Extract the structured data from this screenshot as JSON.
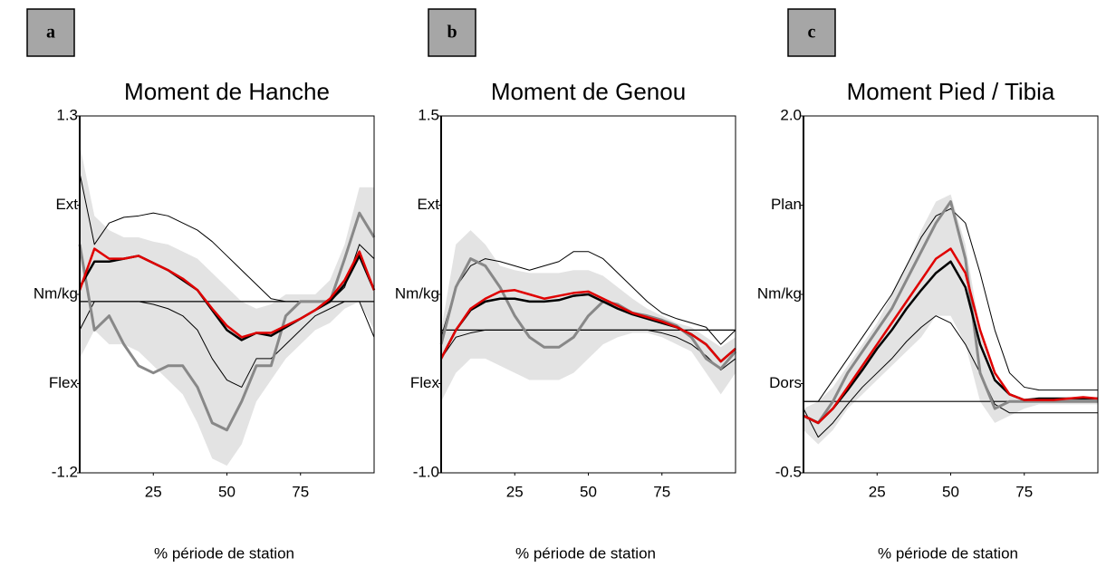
{
  "chart_data": [
    {
      "type": "line",
      "panel_label": "a",
      "title": "Moment de Hanche",
      "xlabel": "% période de station",
      "x": [
        0,
        5,
        10,
        15,
        20,
        25,
        30,
        35,
        40,
        45,
        50,
        55,
        60,
        65,
        70,
        75,
        80,
        85,
        90,
        95,
        100
      ],
      "xlim": [
        0,
        100
      ],
      "xticks": [
        25,
        50,
        75
      ],
      "ylim": [
        -1.2,
        1.3
      ],
      "yticks": [
        -1.2,
        {
          "value": -0.575,
          "label": "Flex"
        },
        {
          "value": 0.05,
          "label": "Nm/kg"
        },
        {
          "value": 0.675,
          "label": "Ext"
        },
        1.3
      ],
      "reference_line": 0,
      "band": {
        "color": "#e3e3e3",
        "upper": [
          1.1,
          0.6,
          0.5,
          0.45,
          0.45,
          0.42,
          0.4,
          0.35,
          0.3,
          0.2,
          0.1,
          0.0,
          -0.05,
          -0.02,
          0.05,
          0.05,
          0.05,
          0.15,
          0.4,
          0.8,
          0.8
        ],
        "lower": [
          -0.4,
          -0.2,
          -0.3,
          -0.3,
          -0.35,
          -0.45,
          -0.55,
          -0.65,
          -0.85,
          -1.1,
          -1.15,
          -1.0,
          -0.7,
          -0.55,
          -0.4,
          -0.3,
          -0.2,
          -0.15,
          -0.05,
          0.0,
          -0.2
        ]
      },
      "series": [
        {
          "color": "#000000",
          "linewidth": 1,
          "values": [
            0.9,
            0.4,
            0.55,
            0.59,
            0.6,
            0.62,
            0.6,
            0.55,
            0.5,
            0.42,
            0.32,
            0.22,
            0.12,
            0.02,
            0.0,
            0.0,
            0.0,
            0.0,
            0.1,
            0.4,
            0.3
          ]
        },
        {
          "color": "#000000",
          "linewidth": 1,
          "values": [
            -0.2,
            0.0,
            0.0,
            0.0,
            0.0,
            -0.02,
            -0.05,
            -0.1,
            -0.2,
            -0.4,
            -0.55,
            -0.6,
            -0.4,
            -0.4,
            -0.3,
            -0.2,
            -0.1,
            -0.05,
            0.0,
            0.0,
            -0.25
          ]
        },
        {
          "color": "#888888",
          "linewidth": 3,
          "values": [
            0.4,
            -0.2,
            -0.1,
            -0.3,
            -0.45,
            -0.5,
            -0.45,
            -0.45,
            -0.6,
            -0.85,
            -0.9,
            -0.7,
            -0.45,
            -0.45,
            -0.1,
            0.0,
            0.0,
            0.0,
            0.3,
            0.62,
            0.45
          ]
        },
        {
          "color": "#000000",
          "linewidth": 2.5,
          "values": [
            0.1,
            0.28,
            0.28,
            0.3,
            0.32,
            0.27,
            0.22,
            0.15,
            0.08,
            -0.06,
            -0.2,
            -0.27,
            -0.22,
            -0.24,
            -0.18,
            -0.12,
            -0.06,
            0.0,
            0.12,
            0.32,
            0.08
          ]
        },
        {
          "color": "#e00000",
          "linewidth": 2.5,
          "values": [
            0.08,
            0.37,
            0.3,
            0.3,
            0.32,
            0.27,
            0.22,
            0.16,
            0.08,
            -0.05,
            -0.17,
            -0.25,
            -0.22,
            -0.22,
            -0.17,
            -0.12,
            -0.06,
            0.02,
            0.15,
            0.35,
            0.08
          ]
        }
      ]
    },
    {
      "type": "line",
      "panel_label": "b",
      "title": "Moment de Genou",
      "xlabel": "% période de station",
      "x": [
        0,
        5,
        10,
        15,
        20,
        25,
        30,
        35,
        40,
        45,
        50,
        55,
        60,
        65,
        70,
        75,
        80,
        85,
        90,
        95,
        100
      ],
      "xlim": [
        0,
        100
      ],
      "xticks": [
        25,
        50,
        75
      ],
      "ylim": [
        -1.0,
        1.5
      ],
      "yticks": [
        {
          "value": -1.0,
          "label": "-1.0"
        },
        {
          "value": -0.375,
          "label": "Flex"
        },
        {
          "value": 0.25,
          "label": "Nm/kg"
        },
        {
          "value": 0.875,
          "label": "Ext"
        },
        1.5
      ],
      "reference_line": 0,
      "band": {
        "color": "#e3e3e3",
        "upper": [
          0.0,
          0.6,
          0.7,
          0.6,
          0.45,
          0.42,
          0.4,
          0.4,
          0.4,
          0.42,
          0.42,
          0.38,
          0.3,
          0.22,
          0.15,
          0.1,
          0.05,
          0.02,
          -0.05,
          -0.12,
          -0.05
        ],
        "lower": [
          -0.5,
          -0.3,
          -0.2,
          -0.2,
          -0.25,
          -0.3,
          -0.35,
          -0.35,
          -0.35,
          -0.3,
          -0.2,
          -0.1,
          -0.05,
          -0.02,
          -0.02,
          -0.05,
          -0.1,
          -0.15,
          -0.3,
          -0.45,
          -0.3
        ]
      },
      "series": [
        {
          "color": "#000000",
          "linewidth": 1,
          "values": [
            -0.05,
            0.3,
            0.45,
            0.5,
            0.48,
            0.45,
            0.42,
            0.45,
            0.48,
            0.55,
            0.55,
            0.5,
            0.4,
            0.3,
            0.2,
            0.12,
            0.08,
            0.05,
            0.02,
            -0.1,
            0.0
          ]
        },
        {
          "color": "#000000",
          "linewidth": 1,
          "values": [
            -0.2,
            -0.05,
            -0.02,
            0.0,
            0.0,
            0.0,
            0.0,
            0.0,
            0.0,
            0.0,
            0.0,
            0.0,
            0.0,
            0.0,
            0.0,
            -0.02,
            -0.05,
            -0.1,
            -0.18,
            -0.28,
            -0.2
          ]
        },
        {
          "color": "#888888",
          "linewidth": 3,
          "values": [
            -0.1,
            0.3,
            0.5,
            0.45,
            0.3,
            0.1,
            -0.05,
            -0.12,
            -0.12,
            -0.05,
            0.1,
            0.2,
            0.18,
            0.12,
            0.1,
            0.07,
            0.03,
            -0.05,
            -0.2,
            -0.27,
            -0.15
          ]
        },
        {
          "color": "#000000",
          "linewidth": 2.5,
          "values": [
            -0.2,
            0.0,
            0.14,
            0.2,
            0.22,
            0.22,
            0.2,
            0.2,
            0.21,
            0.24,
            0.25,
            0.2,
            0.15,
            0.11,
            0.08,
            0.05,
            0.02,
            -0.03,
            -0.1,
            -0.22,
            -0.13
          ]
        },
        {
          "color": "#e00000",
          "linewidth": 2.5,
          "values": [
            -0.2,
            0.0,
            0.15,
            0.22,
            0.27,
            0.28,
            0.25,
            0.22,
            0.24,
            0.26,
            0.27,
            0.22,
            0.17,
            0.12,
            0.09,
            0.06,
            0.02,
            -0.03,
            -0.1,
            -0.22,
            -0.13
          ]
        }
      ]
    },
    {
      "type": "line",
      "panel_label": "c",
      "title": "Moment Pied / Tibia",
      "xlabel": "% période de station",
      "x": [
        0,
        5,
        10,
        15,
        20,
        25,
        30,
        35,
        40,
        45,
        50,
        55,
        60,
        65,
        70,
        75,
        80,
        85,
        90,
        95,
        100
      ],
      "xlim": [
        0,
        100
      ],
      "xticks": [
        25,
        50,
        75
      ],
      "ylim": [
        -0.5,
        2.0
      ],
      "yticks": [
        -0.5,
        {
          "value": 0.125,
          "label": "Dors"
        },
        {
          "value": 0.75,
          "label": "Nm/kg"
        },
        {
          "value": 1.375,
          "label": "Plan"
        },
        {
          "value": 2.0,
          "label": "2.0"
        }
      ],
      "reference_line": 0,
      "band": {
        "color": "#e3e3e3",
        "upper": [
          -0.05,
          0.0,
          0.1,
          0.25,
          0.4,
          0.55,
          0.75,
          0.95,
          1.2,
          1.4,
          1.45,
          1.1,
          0.5,
          0.15,
          0.05,
          0.02,
          0.02,
          0.02,
          0.02,
          0.02,
          0.02
        ],
        "lower": [
          -0.2,
          -0.3,
          -0.2,
          -0.05,
          0.05,
          0.15,
          0.25,
          0.35,
          0.45,
          0.6,
          0.6,
          0.4,
          0.0,
          -0.15,
          -0.1,
          -0.05,
          -0.02,
          -0.02,
          -0.02,
          -0.02,
          -0.02
        ]
      },
      "series": [
        {
          "color": "#000000",
          "linewidth": 1,
          "values": [
            0.0,
            0.0,
            0.15,
            0.3,
            0.45,
            0.6,
            0.75,
            0.95,
            1.15,
            1.3,
            1.35,
            1.25,
            0.9,
            0.5,
            0.2,
            0.1,
            0.08,
            0.08,
            0.08,
            0.08,
            0.08
          ]
        },
        {
          "color": "#000000",
          "linewidth": 1,
          "values": [
            -0.05,
            -0.25,
            -0.15,
            -0.02,
            0.1,
            0.2,
            0.3,
            0.42,
            0.52,
            0.6,
            0.55,
            0.4,
            0.2,
            -0.02,
            -0.08,
            -0.08,
            -0.08,
            -0.08,
            -0.08,
            -0.08,
            -0.08
          ]
        },
        {
          "color": "#888888",
          "linewidth": 3,
          "values": [
            -0.1,
            -0.15,
            0.0,
            0.2,
            0.35,
            0.5,
            0.65,
            0.85,
            1.05,
            1.25,
            1.4,
            1.0,
            0.2,
            -0.05,
            0.0,
            0.0,
            0.0,
            0.0,
            0.0,
            0.0,
            0.0
          ]
        },
        {
          "color": "#000000",
          "linewidth": 2.5,
          "values": [
            -0.1,
            -0.15,
            -0.05,
            0.08,
            0.22,
            0.37,
            0.5,
            0.65,
            0.78,
            0.9,
            0.98,
            0.8,
            0.4,
            0.15,
            0.05,
            0.01,
            0.02,
            0.02,
            0.02,
            0.02,
            0.02
          ]
        },
        {
          "color": "#e00000",
          "linewidth": 2.5,
          "values": [
            -0.1,
            -0.15,
            -0.05,
            0.1,
            0.25,
            0.4,
            0.55,
            0.7,
            0.85,
            1.0,
            1.07,
            0.9,
            0.5,
            0.2,
            0.05,
            0.01,
            0.01,
            0.01,
            0.02,
            0.03,
            0.02
          ]
        }
      ]
    }
  ]
}
